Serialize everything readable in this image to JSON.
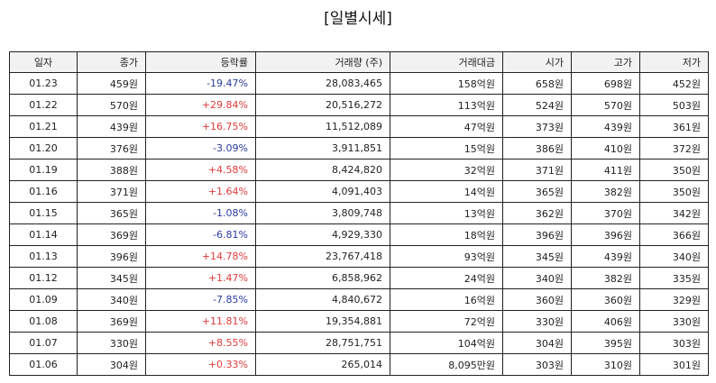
{
  "title": "[일별시세]",
  "columns": [
    "일자",
    "종가",
    "등락률",
    "거래량 (주)",
    "거래대금",
    "시가",
    "고가",
    "저가"
  ],
  "rows": [
    {
      "date": "01.23",
      "close": "459원",
      "change": "-19.47%",
      "dir": "down",
      "volume": "28,083,465",
      "amount": "158억원",
      "open": "658원",
      "high": "698원",
      "low": "452원"
    },
    {
      "date": "01.22",
      "close": "570원",
      "change": "+29.84%",
      "dir": "up",
      "volume": "20,516,272",
      "amount": "113억원",
      "open": "524원",
      "high": "570원",
      "low": "503원"
    },
    {
      "date": "01.21",
      "close": "439원",
      "change": "+16.75%",
      "dir": "up",
      "volume": "11,512,089",
      "amount": "47억원",
      "open": "373원",
      "high": "439원",
      "low": "361원"
    },
    {
      "date": "01.20",
      "close": "376원",
      "change": "-3.09%",
      "dir": "down",
      "volume": "3,911,851",
      "amount": "15억원",
      "open": "386원",
      "high": "410원",
      "low": "372원"
    },
    {
      "date": "01.19",
      "close": "388원",
      "change": "+4.58%",
      "dir": "up",
      "volume": "8,424,820",
      "amount": "32억원",
      "open": "371원",
      "high": "411원",
      "low": "350원"
    },
    {
      "date": "01.16",
      "close": "371원",
      "change": "+1.64%",
      "dir": "up",
      "volume": "4,091,403",
      "amount": "14억원",
      "open": "365원",
      "high": "382원",
      "low": "350원"
    },
    {
      "date": "01.15",
      "close": "365원",
      "change": "-1.08%",
      "dir": "down",
      "volume": "3,809,748",
      "amount": "13억원",
      "open": "362원",
      "high": "370원",
      "low": "342원"
    },
    {
      "date": "01.14",
      "close": "369원",
      "change": "-6.81%",
      "dir": "down",
      "volume": "4,929,330",
      "amount": "18억원",
      "open": "396원",
      "high": "396원",
      "low": "366원"
    },
    {
      "date": "01.13",
      "close": "396원",
      "change": "+14.78%",
      "dir": "up",
      "volume": "23,767,418",
      "amount": "93억원",
      "open": "345원",
      "high": "439원",
      "low": "340원"
    },
    {
      "date": "01.12",
      "close": "345원",
      "change": "+1.47%",
      "dir": "up",
      "volume": "6,858,962",
      "amount": "24억원",
      "open": "340원",
      "high": "382원",
      "low": "335원"
    },
    {
      "date": "01.09",
      "close": "340원",
      "change": "-7.85%",
      "dir": "down",
      "volume": "4,840,672",
      "amount": "16억원",
      "open": "360원",
      "high": "360원",
      "low": "329원"
    },
    {
      "date": "01.08",
      "close": "369원",
      "change": "+11.81%",
      "dir": "up",
      "volume": "19,354,881",
      "amount": "72억원",
      "open": "330원",
      "high": "406원",
      "low": "330원"
    },
    {
      "date": "01.07",
      "close": "330원",
      "change": "+8.55%",
      "dir": "up",
      "volume": "28,751,751",
      "amount": "104억원",
      "open": "304원",
      "high": "395원",
      "low": "303원"
    },
    {
      "date": "01.06",
      "close": "304원",
      "change": "+0.33%",
      "dir": "up",
      "volume": "265,014",
      "amount": "8,095만원",
      "open": "303원",
      "high": "310원",
      "low": "301원"
    }
  ],
  "colors": {
    "up": "#e03a3a",
    "down": "#2b3a9e",
    "header_bg": "#f2f2f2",
    "border": "#222222"
  }
}
